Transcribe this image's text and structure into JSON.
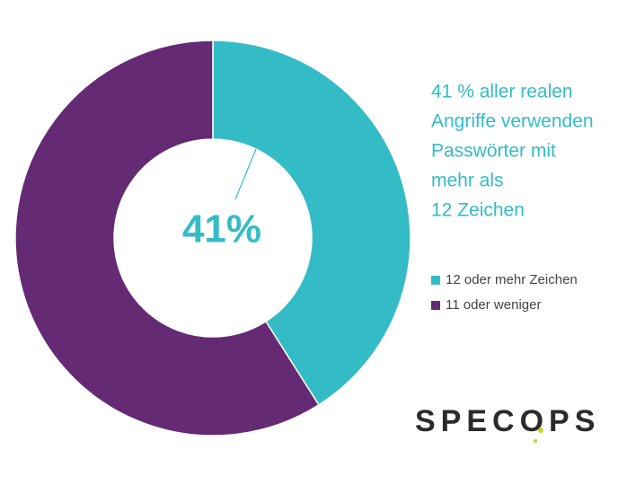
{
  "chart_data": {
    "type": "donut",
    "categories": [
      "12 oder mehr Zeichen",
      "11 oder weniger"
    ],
    "values": [
      41,
      59
    ],
    "value_labels": [
      "41%",
      null
    ],
    "colors": [
      "#33bcc6",
      "#642a73"
    ],
    "annotation": [
      "41 % aller realen",
      "Angriffe verwenden",
      "Passwörter mit",
      "mehr als",
      "12 Zeichen"
    ],
    "logo": "SPECOPS"
  }
}
